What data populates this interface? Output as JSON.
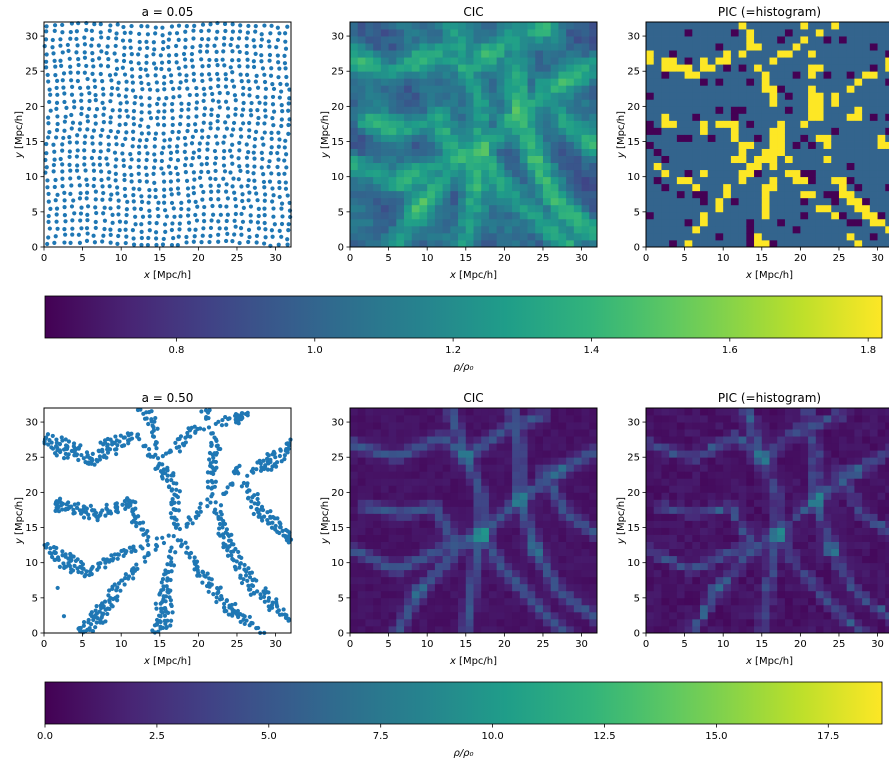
{
  "panels": [
    {
      "id": "p00",
      "row": 0,
      "col": 0,
      "type": "scatter",
      "title": "a = 0.05"
    },
    {
      "id": "p01",
      "row": 0,
      "col": 1,
      "type": "heatmap",
      "title": "CIC"
    },
    {
      "id": "p02",
      "row": 0,
      "col": 2,
      "type": "heatmap",
      "title": "PIC (=histogram)"
    },
    {
      "id": "p10",
      "row": 1,
      "col": 0,
      "type": "scatter",
      "title": "a = 0.50"
    },
    {
      "id": "p11",
      "row": 1,
      "col": 1,
      "type": "heatmap",
      "title": "CIC"
    },
    {
      "id": "p12",
      "row": 1,
      "col": 2,
      "type": "heatmap",
      "title": "PIC (=histogram)"
    }
  ],
  "axes": {
    "x_unit": "[Mpc/h]",
    "x_var": "x",
    "y_unit": "[Mpc/h]",
    "y_var": "y",
    "xlim": [
      0,
      32
    ],
    "ylim": [
      0,
      32
    ],
    "xticks": [
      0,
      5,
      10,
      15,
      20,
      25,
      30
    ],
    "yticks": [
      0,
      5,
      10,
      15,
      20,
      25,
      30
    ]
  },
  "colorbars": [
    {
      "id": "cb0",
      "row": 0,
      "label": "ρ/ρ₀",
      "min": 0.61,
      "max": 1.82,
      "ticks": [
        0.8,
        1.0,
        1.2,
        1.4,
        1.6,
        1.8
      ],
      "tick_labels": [
        "0.8",
        "1.0",
        "1.2",
        "1.4",
        "1.6",
        "1.8"
      ]
    },
    {
      "id": "cb1",
      "row": 1,
      "label": "ρ/ρ₀",
      "min": 0.0,
      "max": 18.7,
      "ticks": [
        0,
        2.5,
        5,
        7.5,
        10,
        12.5,
        15,
        17.5
      ],
      "tick_labels": [
        "0.0",
        "2.5",
        "5.0",
        "7.5",
        "10.0",
        "12.5",
        "15.0",
        "17.5"
      ]
    }
  ],
  "chart_data": [
    {
      "type": "scatter",
      "title": "a = 0.05",
      "xlabel": "x [Mpc/h]",
      "ylabel": "y [Mpc/h]",
      "xlim": [
        0,
        32
      ],
      "ylim": [
        0,
        32
      ],
      "marker_color": "#1f77b4",
      "description_points": "regular grid of ~32x32 particles, slightly perturbed"
    },
    {
      "type": "heatmap",
      "title": "CIC",
      "xlabel": "x [Mpc/h]",
      "ylabel": "y [Mpc/h]",
      "xlim": [
        0,
        32
      ],
      "ylim": [
        0,
        32
      ],
      "grid": [
        32,
        32
      ],
      "colormap": "viridis",
      "vmin": 0.61,
      "vmax": 1.82
    },
    {
      "type": "heatmap",
      "title": "PIC (=histogram)",
      "xlabel": "x [Mpc/h]",
      "ylabel": "y [Mpc/h]",
      "xlim": [
        0,
        32
      ],
      "ylim": [
        0,
        32
      ],
      "grid": [
        32,
        32
      ],
      "colormap": "viridis",
      "vmin": 0.61,
      "vmax": 1.82,
      "levels": [
        0.61,
        1.0,
        1.82
      ]
    },
    {
      "type": "scatter",
      "title": "a = 0.50",
      "xlabel": "x [Mpc/h]",
      "ylabel": "y [Mpc/h]",
      "xlim": [
        0,
        32
      ],
      "ylim": [
        0,
        32
      ],
      "marker_color": "#1f77b4",
      "description_points": "particles clustered along filaments and nodes"
    },
    {
      "type": "heatmap",
      "title": "CIC",
      "xlabel": "x [Mpc/h]",
      "ylabel": "y [Mpc/h]",
      "xlim": [
        0,
        32
      ],
      "ylim": [
        0,
        32
      ],
      "grid": [
        32,
        32
      ],
      "colormap": "viridis",
      "vmin": 0.0,
      "vmax": 18.7
    },
    {
      "type": "heatmap",
      "title": "PIC (=histogram)",
      "xlabel": "x [Mpc/h]",
      "ylabel": "y [Mpc/h]",
      "xlim": [
        0,
        32
      ],
      "ylim": [
        0,
        32
      ],
      "grid": [
        32,
        32
      ],
      "colormap": "viridis",
      "vmin": 0.0,
      "vmax": 18.7
    }
  ],
  "colors": {
    "marker": "#1f77b4",
    "axis": "#000000",
    "background": "#ffffff"
  }
}
